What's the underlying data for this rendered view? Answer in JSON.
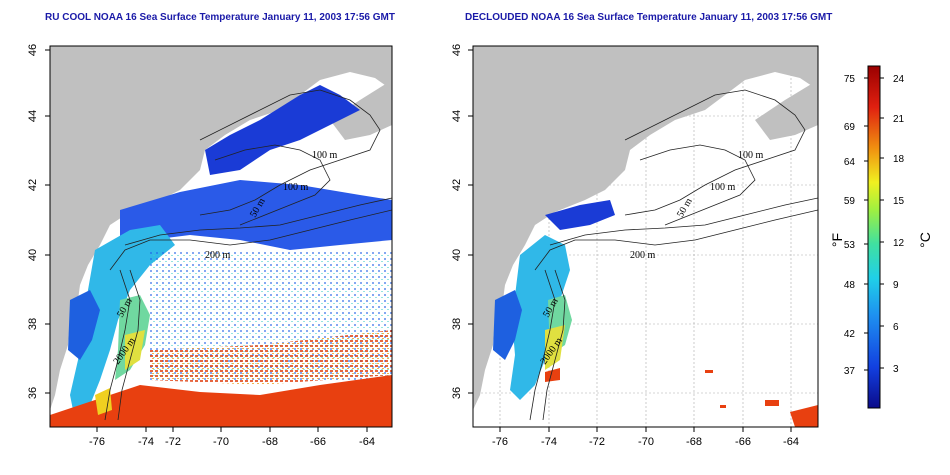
{
  "panels": [
    {
      "id": "raw",
      "title": "RU COOL NOAA 16 Sea Surface Temperature January 11, 2003 17:56 GMT",
      "grid": false,
      "contour_labels": [
        "100 m",
        "100 m",
        "50 m",
        "200 m",
        "50 m",
        "2000 m"
      ]
    },
    {
      "id": "declouded",
      "title": "DECLOUDED NOAA 16 Sea Surface Temperature January 11, 2003 17:56 GMT",
      "grid": true,
      "contour_labels": [
        "100 m",
        "100 m",
        "50 m",
        "200 m",
        "50 m",
        "2000 m"
      ]
    }
  ],
  "axes": {
    "lon_ticks": [
      "-76",
      "-74",
      "-72",
      "-70",
      "-68",
      "-66",
      "-64"
    ],
    "lat_ticks": [
      "36",
      "38",
      "40",
      "42",
      "44",
      "46"
    ],
    "lon_range": [
      -77.2,
      -62.9
    ],
    "lat_range": [
      35,
      46
    ]
  },
  "colorbar": {
    "fahrenheit_ticks": [
      "75",
      "69",
      "64",
      "59",
      "53",
      "48",
      "42",
      "37"
    ],
    "celsius_ticks": [
      "24",
      "21",
      "18",
      "15",
      "12",
      "9",
      "6",
      "3"
    ],
    "celsius_range": [
      0,
      25.5
    ],
    "left_unit": "°F",
    "right_unit": "°C",
    "colors": [
      "#0b0b8a",
      "#1240e0",
      "#1e90f0",
      "#20d0e8",
      "#40e0a0",
      "#a0f040",
      "#f0f020",
      "#f09010",
      "#e02010",
      "#9a0000"
    ]
  },
  "colors": {
    "land": "#c0c0c0",
    "water": "#ffffff",
    "cold": "#1a3bd6",
    "mid": "#20c0e0",
    "warm": "#e83a10"
  }
}
